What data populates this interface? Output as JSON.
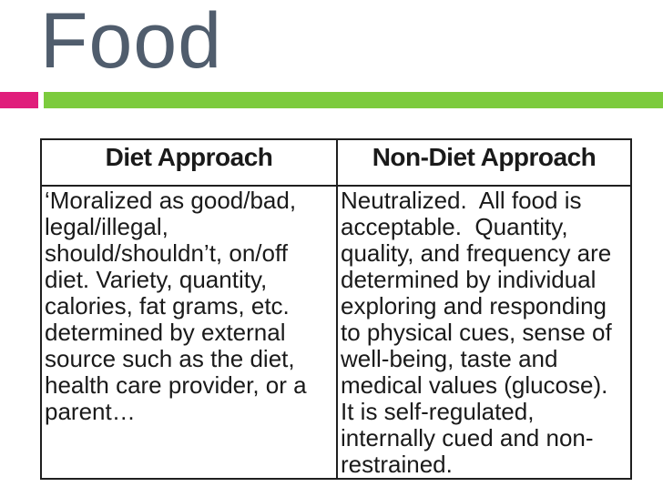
{
  "slide": {
    "title": "Food",
    "colors": {
      "title_text": "#505D6D",
      "accent_pink": "#E01E7B",
      "accent_green": "#7CCB3D"
    }
  },
  "table": {
    "headers": [
      "Diet Approach",
      "Non-Diet Approach"
    ],
    "rows": [
      [
        "‘Moralized as good/bad, legal/illegal, should/shouldn’t, on/off diet. Variety, quantity, calories, fat grams, etc. determined by external source such as the diet, health care provider, or a parent…",
        "Neutralized.  All food is acceptable.  Quantity, quality, and frequency are determined by individual exploring and responding to physical cues, sense of well-being, taste and medical values (glucose).  It is self-regulated, internally cued and non-restrained."
      ]
    ]
  }
}
